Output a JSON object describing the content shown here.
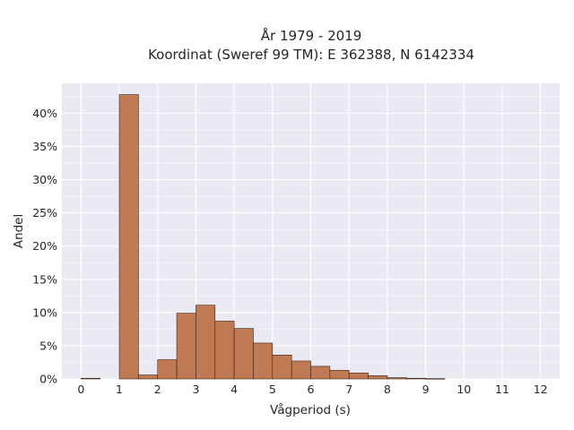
{
  "chart_data": {
    "type": "bar",
    "title": "År 1979 - 2019",
    "subtitle": "Koordinat (Sweref 99 TM): E 362388, N 6142334",
    "xlabel": "Vågperiod (s)",
    "ylabel": "Andel",
    "xlim": [
      -0.5,
      12.5
    ],
    "ylim": [
      0,
      44.5
    ],
    "x_ticks": [
      "0",
      "1",
      "2",
      "3",
      "4",
      "5",
      "6",
      "7",
      "8",
      "9",
      "10",
      "11",
      "12"
    ],
    "y_ticks": [
      "0%",
      "5%",
      "10%",
      "15%",
      "20%",
      "25%",
      "30%",
      "35%",
      "40%"
    ],
    "bin_width": 0.5,
    "bins": [
      {
        "start": 0.0,
        "value": 0.1
      },
      {
        "start": 1.0,
        "value": 42.8
      },
      {
        "start": 1.5,
        "value": 0.6
      },
      {
        "start": 2.0,
        "value": 2.9
      },
      {
        "start": 2.5,
        "value": 9.9
      },
      {
        "start": 3.0,
        "value": 11.1
      },
      {
        "start": 3.5,
        "value": 8.7
      },
      {
        "start": 4.0,
        "value": 7.6
      },
      {
        "start": 4.5,
        "value": 5.4
      },
      {
        "start": 5.0,
        "value": 3.6
      },
      {
        "start": 5.5,
        "value": 2.7
      },
      {
        "start": 6.0,
        "value": 1.9
      },
      {
        "start": 6.5,
        "value": 1.3
      },
      {
        "start": 7.0,
        "value": 0.9
      },
      {
        "start": 7.5,
        "value": 0.5
      },
      {
        "start": 8.0,
        "value": 0.2
      },
      {
        "start": 8.5,
        "value": 0.1
      },
      {
        "start": 9.0,
        "value": 0.05
      }
    ],
    "grid": true,
    "colors": {
      "bar_fill": "#c07a53",
      "bar_edge": "#3a2318",
      "plot_background": "#eaeaf2",
      "grid": "#ffffff"
    }
  }
}
